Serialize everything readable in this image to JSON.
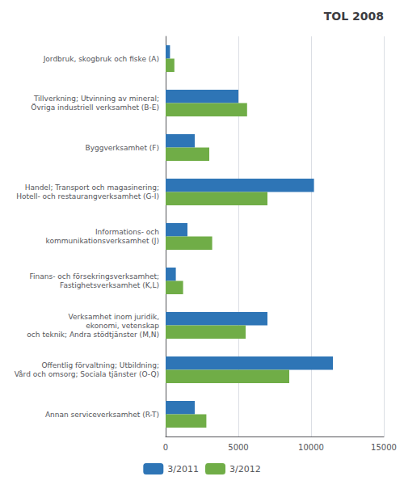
{
  "chart_data": {
    "type": "bar",
    "orientation": "horizontal",
    "title": "TOL 2008",
    "categories": [
      "Jordbruk, skogbruk och fiske (A)",
      "Tillverkning; Utvinning av mineral;\nÖvriga industriell verksamhet (B-E)",
      "Byggverksamhet (F)",
      "Handel; Transport och magasinering;\nHotell- och restaurangverksamhet (G-I)",
      "Informations- och\nkommunikationsverksamhet (J)",
      "Finans- och försekringsverksamhet;\nFastighetsverksamhet (K,L)",
      "Verksamhet inom juridik,\nekonomi, vetenskap\noch teknik; Andra stödtjänster (M,N)",
      "Offentlig förvaltning; Utbildning;\nVård och omsorg; Sociala tjänster (O-Q)",
      "Annan serviceverksamhet (R-T)"
    ],
    "series": [
      {
        "name": "3/2011",
        "color": "#2E75B6",
        "values": [
          300,
          5000,
          2000,
          10200,
          1500,
          700,
          7000,
          11500,
          2000
        ]
      },
      {
        "name": "3/2012",
        "color": "#70AD47",
        "values": [
          600,
          5600,
          3000,
          7000,
          3200,
          1200,
          5500,
          8500,
          2800
        ]
      }
    ],
    "xlim": [
      0,
      15000
    ],
    "xticks": [
      0,
      5000,
      10000,
      15000
    ],
    "grid": true,
    "legend": "bottom"
  }
}
